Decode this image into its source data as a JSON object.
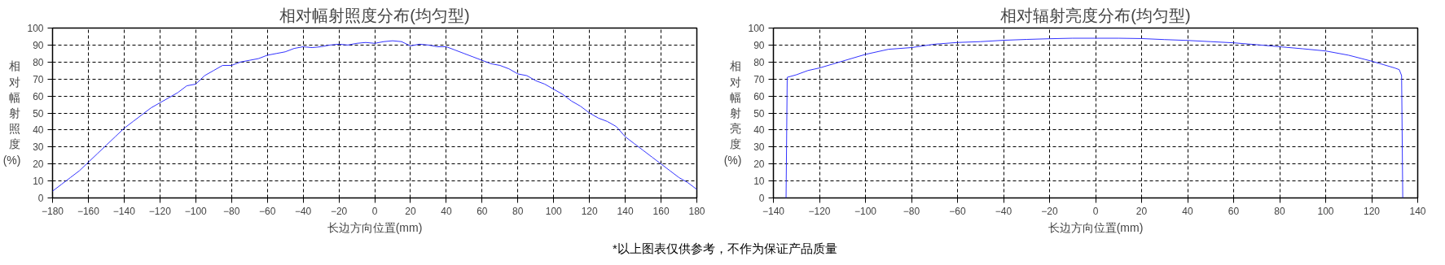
{
  "chart_data": [
    {
      "type": "line",
      "title": "相对幅射照度分布(均匀型)",
      "xlabel": "长边方向位置(mm)",
      "ylabel": "相对幅射照度(%)",
      "xlim": [
        -180,
        180
      ],
      "xticks": [
        -180,
        -160,
        -140,
        -120,
        -100,
        -80,
        -60,
        -40,
        -20,
        0,
        20,
        40,
        60,
        80,
        100,
        120,
        140,
        160,
        180
      ],
      "ylim": [
        0,
        100
      ],
      "yticks": [
        0,
        10,
        20,
        30,
        40,
        50,
        60,
        70,
        80,
        90,
        100
      ],
      "grid": true,
      "line_style": "solid",
      "marker": "none",
      "annotations": [
        "*以上图表仅供参考，不作为保证产品质量"
      ],
      "series": [
        {
          "color": "#3333ff",
          "x": [
            -180,
            -175,
            -170,
            -165,
            -160,
            -155,
            -150,
            -145,
            -140,
            -135,
            -130,
            -125,
            -120,
            -115,
            -110,
            -105,
            -100,
            -95,
            -90,
            -85,
            -80,
            -75,
            -70,
            -65,
            -60,
            -55,
            -50,
            -45,
            -40,
            -35,
            -30,
            -25,
            -20,
            -15,
            -10,
            -5,
            0,
            5,
            10,
            15,
            20,
            25,
            30,
            35,
            40,
            45,
            50,
            55,
            60,
            65,
            70,
            75,
            80,
            85,
            90,
            95,
            100,
            105,
            110,
            115,
            120,
            125,
            130,
            135,
            140,
            145,
            150,
            155,
            160,
            165,
            170,
            175,
            180
          ],
          "values": [
            4,
            8,
            12,
            16,
            21,
            26,
            31,
            36,
            41,
            45,
            49,
            53,
            56,
            59,
            62,
            66,
            67,
            72,
            75,
            78,
            78,
            80,
            81,
            82,
            84,
            85,
            86,
            88,
            89,
            88.5,
            89,
            90,
            90.5,
            90,
            91,
            91.5,
            91,
            92,
            92.5,
            92,
            89.5,
            90.5,
            90,
            89,
            89,
            87,
            85,
            83,
            81,
            79,
            78,
            76,
            73,
            72,
            69,
            67,
            64,
            61,
            57,
            54,
            50,
            47,
            45,
            42,
            36,
            32,
            28,
            24,
            20,
            16,
            12,
            9,
            5
          ]
        }
      ]
    },
    {
      "type": "line",
      "title": "相对辐射亮度分布(均匀型)",
      "xlabel": "长边方向位置(mm)",
      "ylabel": "相对幅射亮度(%)",
      "xlim": [
        -140,
        140
      ],
      "xticks": [
        -140,
        -120,
        -100,
        -80,
        -60,
        -40,
        -20,
        0,
        20,
        40,
        60,
        80,
        100,
        120,
        140
      ],
      "ylim": [
        0,
        100
      ],
      "yticks": [
        0,
        10,
        20,
        30,
        40,
        50,
        60,
        70,
        80,
        90,
        100
      ],
      "grid": true,
      "line_style": "solid",
      "marker": "none",
      "series": [
        {
          "color": "#3333ff",
          "x": [
            -134.5,
            -134,
            -130,
            -125,
            -120,
            -110,
            -100,
            -90,
            -80,
            -70,
            -60,
            -50,
            -40,
            -30,
            -20,
            -10,
            0,
            10,
            20,
            30,
            40,
            50,
            60,
            70,
            80,
            90,
            100,
            110,
            120,
            125,
            130,
            132,
            133,
            133.5
          ],
          "values": [
            0,
            71,
            72.5,
            75,
            76.5,
            80.5,
            84.5,
            87.5,
            88.5,
            90.5,
            91.5,
            92,
            92.8,
            93.3,
            93.7,
            94,
            94,
            94,
            93.8,
            93.2,
            92.7,
            92,
            91.3,
            90.2,
            89,
            87.8,
            86.5,
            84,
            80.5,
            78.5,
            76.5,
            75.5,
            72,
            0
          ]
        }
      ]
    }
  ]
}
